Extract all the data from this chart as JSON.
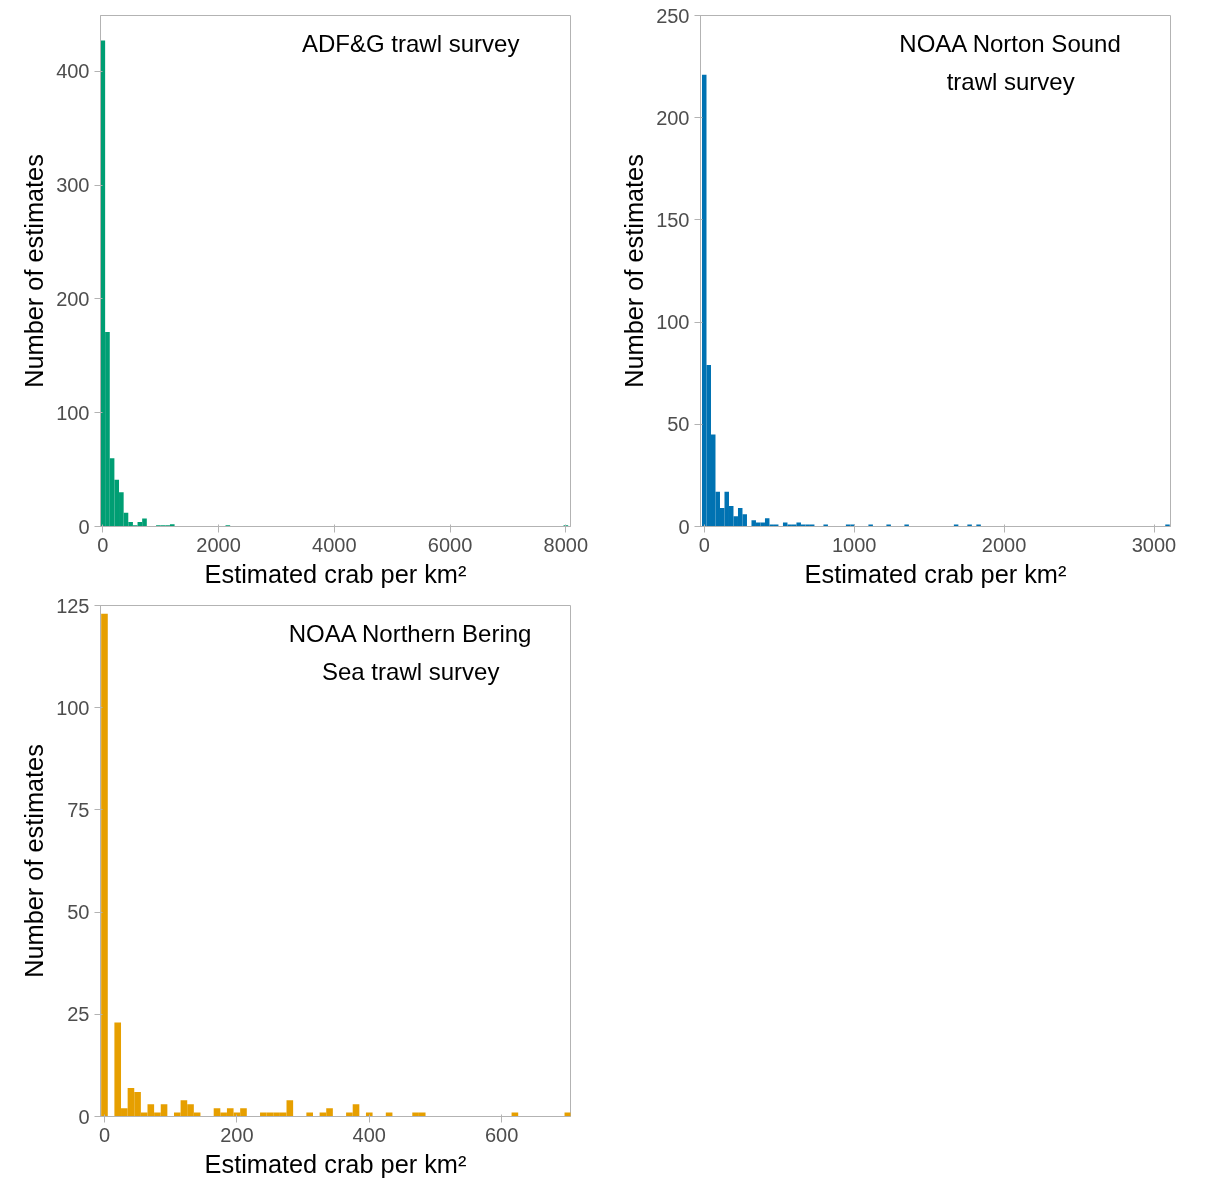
{
  "chart_data": [
    {
      "type": "histogram",
      "title": "ADF&G trawl survey",
      "xlabel": "Estimated crab per km²",
      "ylabel": "Number of estimates",
      "color": "#009e73",
      "grid": false,
      "bins": [
        -40,
        40,
        120,
        200,
        280,
        360,
        440,
        520,
        600,
        680,
        760,
        840,
        920,
        1000,
        1080,
        1160,
        1240,
        1320,
        1400,
        1480,
        1560,
        1640,
        1720,
        1800,
        1880,
        1960,
        2040,
        2120,
        2200,
        2280,
        2360,
        2440,
        2520,
        2600,
        2680,
        2760,
        2840,
        2920,
        3000,
        3080,
        3160,
        3240,
        3320,
        3400,
        3480,
        3560,
        3640,
        3720,
        3800,
        3880,
        3960,
        4040,
        4120,
        4200,
        4280,
        4360,
        4440,
        4520,
        4600,
        4680,
        4760,
        4840,
        4920,
        5000,
        5080,
        5160,
        5240,
        5320,
        5400,
        5480,
        5560,
        5640,
        5720,
        5800,
        5880,
        5960,
        6040,
        6120,
        6200,
        6280,
        6360,
        6440,
        6520,
        6600,
        6680,
        6760,
        6840,
        6920,
        7000,
        7080,
        7160,
        7240,
        7320,
        7400,
        7480,
        7560,
        7640,
        7720,
        7800,
        7880,
        7960,
        8040
      ],
      "values": [
        427,
        171,
        60,
        41,
        30,
        12,
        4,
        1,
        4,
        7,
        0,
        0,
        1,
        1,
        1,
        2,
        0,
        0,
        0,
        0,
        0,
        0,
        0,
        0,
        0,
        0,
        0,
        1,
        0,
        0,
        0,
        0,
        0,
        0,
        0,
        0,
        0,
        0,
        0,
        0,
        0,
        0,
        0,
        0,
        0,
        0,
        0,
        0,
        0,
        0,
        0,
        0,
        0,
        0,
        0,
        0,
        0,
        0,
        0,
        0,
        0,
        0,
        0,
        0,
        0,
        0,
        0,
        0,
        0,
        0,
        0,
        0,
        0,
        0,
        0,
        0,
        0,
        0,
        0,
        0,
        0,
        0,
        0,
        0,
        0,
        0,
        0,
        0,
        0,
        0,
        0,
        0,
        0,
        0,
        0,
        0,
        0,
        0,
        0,
        0,
        1
      ],
      "xlim": [
        -40,
        8080
      ],
      "ylim": [
        0,
        449
      ],
      "xticks": [
        0,
        2000,
        4000,
        6000,
        8000
      ],
      "yticks": [
        0,
        100,
        200,
        300,
        400
      ]
    },
    {
      "type": "histogram",
      "title": "NOAA Norton Sound\ntrawl survey",
      "xlabel": "Estimated crab per km²",
      "ylabel": "Number of estimates",
      "color": "#0072b2",
      "grid": false,
      "bins": [
        -15,
        15,
        45,
        75,
        105,
        135,
        165,
        195,
        225,
        255,
        285,
        315,
        345,
        375,
        405,
        435,
        465,
        495,
        525,
        555,
        585,
        615,
        645,
        675,
        705,
        735,
        765,
        795,
        825,
        855,
        885,
        915,
        945,
        975,
        1005,
        1035,
        1065,
        1095,
        1125,
        1155,
        1185,
        1215,
        1245,
        1275,
        1305,
        1335,
        1365,
        1395,
        1425,
        1455,
        1485,
        1515,
        1545,
        1575,
        1605,
        1635,
        1665,
        1695,
        1725,
        1755,
        1785,
        1815,
        1845,
        1875,
        1905,
        1935,
        1965,
        1995,
        2025,
        2055,
        2085,
        2115,
        2145,
        2175,
        2205,
        2235,
        2265,
        2295,
        2325,
        2355,
        2385,
        2415,
        2445,
        2475,
        2505,
        2535,
        2565,
        2595,
        2625,
        2655,
        2685,
        2715,
        2745,
        2775,
        2805,
        2835,
        2865,
        2895,
        2925,
        2955,
        2985,
        3015,
        3045,
        3075,
        3105
      ],
      "values": [
        221,
        79,
        45,
        17,
        9,
        17,
        10,
        5,
        9,
        6,
        0,
        3,
        2,
        2,
        4,
        1,
        1,
        0,
        2,
        1,
        1,
        2,
        1,
        1,
        1,
        0,
        0,
        1,
        0,
        0,
        0,
        0,
        1,
        1,
        0,
        0,
        0,
        1,
        0,
        0,
        0,
        1,
        0,
        0,
        0,
        1,
        0,
        0,
        0,
        0,
        0,
        0,
        0,
        0,
        0,
        0,
        1,
        0,
        0,
        1,
        0,
        1,
        0,
        0,
        0,
        0,
        0,
        0,
        0,
        0,
        0,
        0,
        0,
        0,
        0,
        0,
        0,
        0,
        0,
        0,
        0,
        0,
        0,
        0,
        0,
        0,
        0,
        0,
        0,
        0,
        0,
        0,
        0,
        0,
        0,
        0,
        0,
        0,
        0,
        0,
        0,
        0,
        0,
        1
      ],
      "xlim": [
        -25,
        3110
      ],
      "ylim": [
        0,
        250
      ],
      "xticks": [
        0,
        1000,
        2000,
        3000
      ],
      "yticks": [
        0,
        50,
        100,
        150,
        200,
        250
      ]
    },
    {
      "type": "histogram",
      "title": "NOAA Northern Bering\nSea trawl survey",
      "xlabel": "Estimated crab per km²",
      "ylabel": "Number of estimates",
      "color": "#e69f00",
      "grid": false,
      "bins": [
        -5,
        5,
        15,
        25,
        35,
        45,
        55,
        65,
        75,
        85,
        95,
        105,
        115,
        125,
        135,
        145,
        155,
        165,
        175,
        185,
        195,
        205,
        215,
        225,
        235,
        245,
        255,
        265,
        275,
        285,
        295,
        305,
        315,
        325,
        335,
        345,
        355,
        365,
        375,
        385,
        395,
        405,
        415,
        425,
        435,
        445,
        455,
        465,
        475,
        485,
        495,
        505,
        515,
        525,
        535,
        545,
        555,
        565,
        575,
        585,
        595,
        605,
        615,
        625,
        635,
        645,
        655,
        665,
        675,
        685,
        695,
        705
      ],
      "values": [
        123,
        0,
        23,
        2,
        7,
        6,
        1,
        3,
        1,
        3,
        0,
        1,
        4,
        3,
        1,
        0,
        0,
        2,
        1,
        2,
        1,
        2,
        0,
        0,
        1,
        1,
        1,
        1,
        4,
        0,
        0,
        1,
        0,
        1,
        2,
        0,
        0,
        1,
        3,
        0,
        1,
        0,
        0,
        1,
        0,
        0,
        0,
        1,
        1,
        0,
        0,
        0,
        0,
        0,
        0,
        0,
        0,
        0,
        0,
        0,
        0,
        0,
        1,
        0,
        0,
        0,
        0,
        0,
        0,
        0,
        1
      ],
      "xlim": [
        -6,
        704
      ],
      "ylim": [
        0,
        125
      ],
      "xticks": [
        0,
        200,
        400,
        600
      ],
      "yticks": [
        0,
        25,
        50,
        75,
        100,
        125
      ]
    }
  ]
}
